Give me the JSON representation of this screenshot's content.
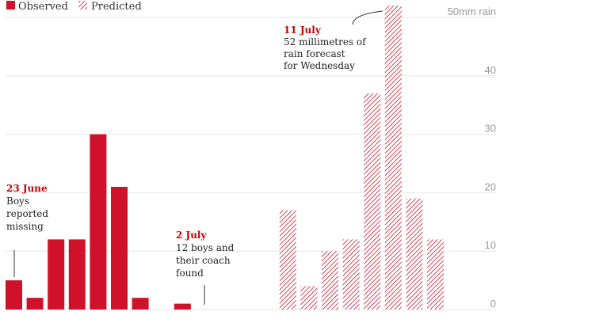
{
  "legend": {
    "observed_label": "Observed",
    "predicted_label": "Predicted"
  },
  "colors": {
    "observed": "#d0112b",
    "predicted": "#d0112b",
    "grid": "#e6e6e6",
    "tick_label": "#999999",
    "annotation_date": "#c70000"
  },
  "annotations": [
    {
      "date": "23 June",
      "lines": [
        "Boys",
        "reported",
        "missing"
      ]
    },
    {
      "date": "2 July",
      "lines": [
        "12 boys and",
        "their coach",
        "found"
      ]
    },
    {
      "date": "11 July",
      "lines": [
        "52 millimetres of",
        "rain forecast",
        "for Wednesday"
      ]
    }
  ],
  "chart_data": {
    "type": "bar",
    "title": "",
    "xlabel": "",
    "ylabel": "",
    "y_unit_label": "50mm rain",
    "ylim": [
      0,
      50
    ],
    "yticks": [
      0,
      10,
      20,
      30,
      40,
      50
    ],
    "y_tick_labels": [
      "0",
      "10",
      "20",
      "30",
      "40",
      "50mm rain"
    ],
    "grid": true,
    "legend_position": "top-left",
    "series": [
      {
        "name": "Observed",
        "style": "solid",
        "values": [
          5,
          2,
          12,
          12,
          30,
          21,
          2,
          0,
          1,
          0,
          0,
          0,
          0,
          0,
          0,
          0,
          0,
          0,
          0,
          0,
          0
        ]
      },
      {
        "name": "Predicted",
        "style": "hatched",
        "values": [
          0,
          0,
          0,
          0,
          0,
          0,
          0,
          0,
          0,
          0,
          0,
          0,
          0,
          17,
          4,
          10,
          12,
          37,
          52,
          19,
          12
        ]
      }
    ]
  }
}
